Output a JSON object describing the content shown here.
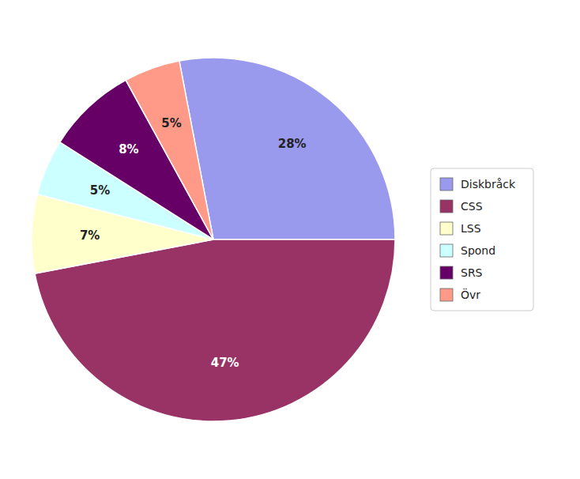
{
  "chart_data": {
    "type": "pie",
    "categories": [
      "Diskbråck",
      "CSS",
      "LSS",
      "Spond",
      "SRS",
      "Övr"
    ],
    "values": [
      28,
      47,
      7,
      5,
      8,
      5
    ],
    "value_labels": [
      "28%",
      "47%",
      "7%",
      "5%",
      "8%",
      "5%"
    ],
    "colors": [
      "#9999ee",
      "#993366",
      "#ffffcc",
      "#ccffff",
      "#660066",
      "#ff9988"
    ],
    "data_labels": true,
    "legend": "right"
  }
}
